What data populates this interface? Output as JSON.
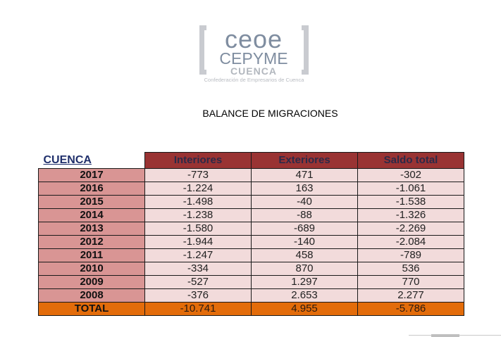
{
  "logo": {
    "line1": "ceoe",
    "line2": "CEPYME",
    "line3": "CUENCA",
    "subtitle": "Confederación de Empresarios de Cuenca"
  },
  "title": "BALANCE DE MIGRACIONES",
  "table": {
    "corner_label": "CUENCA",
    "headers": [
      "Interiores",
      "Exteriores",
      "Saldo total"
    ],
    "rows": [
      {
        "year": "2017",
        "interiores": "-773",
        "exteriores": "471",
        "saldo": "-302"
      },
      {
        "year": "2016",
        "interiores": "-1.224",
        "exteriores": "163",
        "saldo": "-1.061"
      },
      {
        "year": "2015",
        "interiores": "-1.498",
        "exteriores": "-40",
        "saldo": "-1.538"
      },
      {
        "year": "2014",
        "interiores": "-1.238",
        "exteriores": "-88",
        "saldo": "-1.326"
      },
      {
        "year": "2013",
        "interiores": "-1.580",
        "exteriores": "-689",
        "saldo": "-2.269"
      },
      {
        "year": "2012",
        "interiores": "-1.944",
        "exteriores": "-140",
        "saldo": "-2.084"
      },
      {
        "year": "2011",
        "interiores": "-1.247",
        "exteriores": "458",
        "saldo": "-789"
      },
      {
        "year": "2010",
        "interiores": "-334",
        "exteriores": "870",
        "saldo": "536"
      },
      {
        "year": "2009",
        "interiores": "-527",
        "exteriores": "1.297",
        "saldo": "770"
      },
      {
        "year": "2008",
        "interiores": "-376",
        "exteriores": "2.653",
        "saldo": "2.277"
      }
    ],
    "total": {
      "label": "TOTAL",
      "interiores": "-10.741",
      "exteriores": "4.955",
      "saldo": "-5.786"
    }
  },
  "colors": {
    "header_bg": "#993333",
    "year_bg": "#d99594",
    "cell_bg": "#f2dbdb",
    "total_bg": "#e36c0a",
    "corner_text": "#1f2f6b"
  }
}
